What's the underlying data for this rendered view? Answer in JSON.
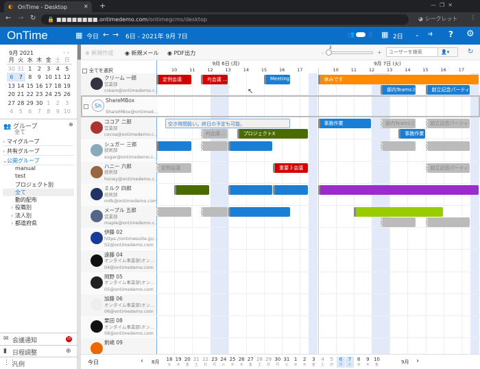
{
  "browser": {
    "tab_title": "OnTime - Desktop",
    "url_host": "■■■■■■■■.ontimedemo.com",
    "url_path": "/ontimegcms/desktop",
    "incognito": "シークレット"
  },
  "header": {
    "logo": "OnTime",
    "today": "今日",
    "date_range": "6日 - 2021年 9月 7日",
    "view": "2日",
    "help": "?"
  },
  "toolbar": {
    "new": "新規作成",
    "mail": "新規メール",
    "pdf": "PDF出力",
    "zoom_value": "2",
    "zoom_minus": "-",
    "zoom_plus": "+",
    "search_placeholder": "ユーザーを検索"
  },
  "mini_calendar": {
    "title": "9月 2021",
    "weekdays": [
      "月",
      "火",
      "水",
      "木",
      "金",
      "土",
      "日"
    ],
    "weeks": [
      [
        "30",
        "31",
        "1",
        "2",
        "3",
        "4",
        "5"
      ],
      [
        "6",
        "7",
        "8",
        "9",
        "10",
        "11",
        "12"
      ],
      [
        "13",
        "14",
        "15",
        "16",
        "17",
        "18",
        "19"
      ],
      [
        "20",
        "21",
        "22",
        "23",
        "24",
        "25",
        "26"
      ],
      [
        "27",
        "28",
        "29",
        "30",
        "1",
        "2",
        "3"
      ],
      [
        "4",
        "5",
        "6",
        "7",
        "8",
        "9",
        "10"
      ]
    ],
    "selected": [
      "6",
      "7"
    ]
  },
  "groups": {
    "title": "グループ",
    "subtitle": "全て",
    "items": [
      {
        "label": "マイグループ",
        "lvl": 0,
        "caret": "›"
      },
      {
        "label": "共有グループ",
        "lvl": 0,
        "caret": "›"
      },
      {
        "label": "公開グループ",
        "lvl": 0,
        "caret": "⌄",
        "open": true
      },
      {
        "label": "manual",
        "lvl": 1
      },
      {
        "label": "test",
        "lvl": 1
      },
      {
        "label": "プロジェクト別",
        "lvl": 1
      },
      {
        "label": "全て",
        "lvl": 1,
        "active": true
      },
      {
        "label": "動的配布",
        "lvl": 1
      },
      {
        "label": "役職別",
        "lvl": 1,
        "caret": "›"
      },
      {
        "label": "法人別",
        "lvl": 1,
        "caret": "›"
      },
      {
        "label": "都道府県",
        "lvl": 1,
        "caret": "›"
      }
    ]
  },
  "sidebar_bottom": {
    "notice": "会議通知",
    "notice_badge": "15",
    "schedule": "日程調整",
    "legend": "凡例"
  },
  "timeline": {
    "select_all": "全てを選択",
    "days": [
      {
        "label": "9月 6日 (月)",
        "hours": [
          "10",
          "11",
          "12",
          "13",
          "14",
          "15",
          "16",
          "17"
        ]
      },
      {
        "label": "9月 7日 (火)",
        "hours": [
          "10",
          "11",
          "12",
          "13",
          "14",
          "15",
          "16",
          "17"
        ]
      }
    ],
    "start_hour": 9,
    "end_hour": 18
  },
  "colors": {
    "red": "#d40000",
    "blue": "#1a7fd4",
    "orange": "#ff8c00",
    "green": "#4a6b00",
    "purple": "#9b2bcc",
    "lime": "#99cc00",
    "gray": "#bbbbbb",
    "header": "#0a6fc8"
  },
  "users": [
    {
      "name": "クリーム 一郎",
      "dept": "営業部",
      "email": "cream@ontimedemo.c...",
      "avatar": "#334",
      "events": [
        {
          "d": 0,
          "s": 9,
          "e": 11,
          "c": "red",
          "t": "定例会議",
          "r": 0
        },
        {
          "d": 0,
          "s": 11.5,
          "e": 13,
          "c": "red",
          "t": "PJ会議 ...",
          "r": 0
        },
        {
          "d": 0,
          "s": 15,
          "e": 16.5,
          "c": "blue",
          "t": "Meeting",
          "r": 0
        },
        {
          "d": 1,
          "s": 9,
          "e": 18,
          "c": "orange",
          "t": "休みです",
          "r": 0
        },
        {
          "d": 1,
          "s": 12.5,
          "e": 14.5,
          "c": "blue",
          "t": "部内Teamsミ...",
          "r": 1
        },
        {
          "d": 1,
          "s": 15,
          "e": 17.5,
          "c": "blue",
          "t": "創立記念パーティー",
          "r": 1
        }
      ]
    },
    {
      "name": "ShareMBox",
      "dept": "",
      "email": "ShareMBox@ontimed...",
      "avatar": "Sh",
      "box": true,
      "events": []
    },
    {
      "name": "ココア 二郎",
      "dept": "営業部",
      "email": "cocoa@ontimedemo.c...",
      "avatar": "#a33",
      "events": [
        {
          "d": 0,
          "s": 9.5,
          "e": 16.5,
          "c": "free",
          "t": "空き時間扱い。終日の予定も可能。",
          "r": 0
        },
        {
          "d": 0,
          "s": 11.5,
          "e": 13,
          "c": "gray",
          "t": "PJ会議 ...",
          "r": 1
        },
        {
          "d": 0,
          "s": 13.5,
          "e": 17.5,
          "c": "green",
          "t": "プロジェクトX",
          "r": 1
        },
        {
          "d": 1,
          "s": 9,
          "e": 12,
          "c": "blue",
          "t": "事務作業",
          "r": 0
        },
        {
          "d": 1,
          "s": 12.5,
          "e": 14.5,
          "c": "gray",
          "t": "部内Teamsミ...",
          "r": 0
        },
        {
          "d": 1,
          "s": 15,
          "e": 17.5,
          "c": "gray",
          "t": "創立記念パーティー",
          "r": 0
        },
        {
          "d": 1,
          "s": 13.5,
          "e": 15,
          "c": "blue",
          "t": "事務作業",
          "r": 1
        }
      ]
    },
    {
      "name": "シュガー 三郎",
      "dept": "技術部",
      "email": "sugar@ontimedemo.c...",
      "avatar": "#8ab",
      "events": [
        {
          "d": 0,
          "s": 9,
          "e": 11,
          "c": "blue",
          "t": "",
          "r": 0
        },
        {
          "d": 0,
          "s": 11.5,
          "e": 13,
          "c": "gray",
          "t": "",
          "r": 0
        },
        {
          "d": 0,
          "s": 13,
          "e": 15.5,
          "c": "blue",
          "t": "",
          "r": 0
        },
        {
          "d": 1,
          "s": 12.5,
          "e": 14.5,
          "c": "gray",
          "t": "",
          "r": 0
        },
        {
          "d": 1,
          "s": 15,
          "e": 17.5,
          "c": "gray",
          "t": "",
          "r": 0
        }
      ]
    },
    {
      "name": "ハニー 六郎",
      "dept": "技術部",
      "email": "honey@ontimedemo.c...",
      "avatar": "#964",
      "events": [
        {
          "d": 0,
          "s": 9,
          "e": 11,
          "c": "gray",
          "t": "定例会議",
          "r": 0
        },
        {
          "d": 0,
          "s": 15.5,
          "e": 17.5,
          "c": "red",
          "t": "重要３会議",
          "r": 0
        },
        {
          "d": 1,
          "s": 15,
          "e": 17.5,
          "c": "gray",
          "t": "創立記念パーティー",
          "r": 0
        }
      ]
    },
    {
      "name": "ミルク 四郎",
      "dept": "技術部",
      "email": "milk@ontimedemo.com",
      "avatar": "#236",
      "events": [
        {
          "d": 0,
          "s": 10,
          "e": 12,
          "c": "green",
          "t": "",
          "r": 0
        },
        {
          "d": 0,
          "s": 13,
          "e": 15.5,
          "c": "blue",
          "t": "",
          "r": 0
        },
        {
          "d": 0,
          "s": 15.5,
          "e": 17.5,
          "c": "blue",
          "t": "",
          "r": 0
        },
        {
          "d": 1,
          "s": 9,
          "e": 18,
          "c": "purple",
          "t": "",
          "r": 0
        }
      ]
    },
    {
      "name": "メープル 五郎",
      "dept": "営業部",
      "email": "maple@ontimedemo.c...",
      "avatar": "#568",
      "events": [
        {
          "d": 0,
          "s": 9,
          "e": 11,
          "c": "gray",
          "t": "",
          "r": 0
        },
        {
          "d": 0,
          "s": 11.5,
          "e": 13,
          "c": "gray",
          "t": "",
          "r": 0
        },
        {
          "d": 0,
          "s": 13,
          "e": 16.5,
          "c": "blue",
          "t": "",
          "r": 0
        },
        {
          "d": 1,
          "s": 11,
          "e": 16,
          "c": "lime",
          "t": "",
          "r": 0
        },
        {
          "d": 1,
          "s": 12.5,
          "e": 14.5,
          "c": "gray",
          "t": "",
          "r": 1
        },
        {
          "d": 1,
          "s": 15,
          "e": 17.5,
          "c": "gray",
          "t": "",
          "r": 1
        }
      ]
    },
    {
      "name": "伊藤 02",
      "dept": "https://ontimesuite.jp/...",
      "email": "02@ontimedemo.com",
      "avatar": "#1a3a9a",
      "events": []
    },
    {
      "name": "遠藤 04",
      "dept": "オンタイム事業部\\オン...",
      "email": "04@ontimedemo.com",
      "avatar": "#111",
      "events": []
    },
    {
      "name": "岡野 05",
      "dept": "オンタイム事業部\\オン...",
      "email": "05@ontimedemo.com",
      "avatar": "#222",
      "events": []
    },
    {
      "name": "加藤 06",
      "dept": "オンタイム事業部\\オン...",
      "email": "06@ontimedemo.com",
      "avatar": "#eee",
      "events": []
    },
    {
      "name": "栗田 08",
      "dept": "オンタイム事業部\\オン...",
      "email": "08@ontimedemo.com",
      "avatar": "#111",
      "events": []
    },
    {
      "name": "剣崎 09",
      "dept": "",
      "email": "",
      "avatar": "#e60",
      "events": []
    }
  ],
  "date_strip": {
    "today": "今日",
    "prev": "‹",
    "next": "›",
    "month_start": "8月",
    "month_end": "9月",
    "dates": [
      [
        "18",
        "水"
      ],
      [
        "19",
        "木"
      ],
      [
        "20",
        "金"
      ],
      [
        "21",
        "土"
      ],
      [
        "22",
        "日"
      ],
      [
        "23",
        "月"
      ],
      [
        "24",
        "火"
      ],
      [
        "25",
        "水"
      ],
      [
        "26",
        "木"
      ],
      [
        "27",
        "金"
      ],
      [
        "28",
        "土"
      ],
      [
        "29",
        "日"
      ],
      [
        "30",
        "月"
      ],
      [
        "31",
        "火"
      ],
      [
        "1",
        "水"
      ],
      [
        "2",
        "木"
      ],
      [
        "3",
        "金"
      ],
      [
        "4",
        "土"
      ],
      [
        "5",
        "日"
      ],
      [
        "6",
        "月"
      ],
      [
        "7",
        "火"
      ],
      [
        "8",
        "水"
      ],
      [
        "9",
        "木"
      ],
      [
        "10",
        "金"
      ]
    ],
    "selected": [
      "6",
      "7"
    ]
  }
}
